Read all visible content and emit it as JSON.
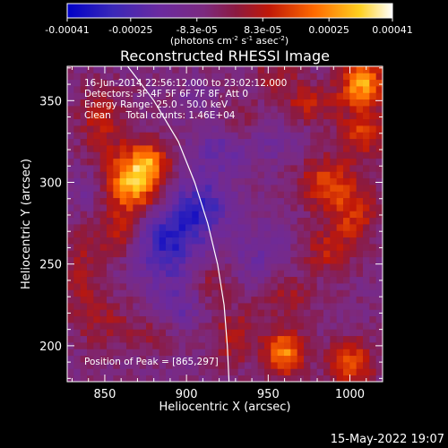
{
  "chart_data": {
    "type": "heatmap",
    "title": "Reconstructed RHESSI Image",
    "xlabel": "Heliocentric X (arcsec)",
    "ylabel": "Heliocentric Y (arcsec)",
    "xlim": [
      827,
      1020
    ],
    "ylim": [
      178,
      371
    ],
    "x_ticks": [
      850,
      900,
      950,
      1000
    ],
    "y_ticks": [
      200,
      250,
      300,
      350
    ],
    "colorbar": {
      "range": [
        -0.00041,
        0.00041
      ],
      "tick_values": [
        -0.00041,
        -0.00025,
        -8.3e-05,
        8.3e-05,
        0.00025,
        0.00041
      ],
      "tick_labels": [
        "-0.00041",
        "-0.00025",
        "-8.3e-05",
        "8.3e-05",
        "0.00025",
        "0.00041"
      ],
      "units": "(photons cm<sup>-2</sup> s<sup>-1</sup> asec<sup>-2</sup>)",
      "colors": [
        "#0000c8",
        "#5a1fb0",
        "#7b2f9a",
        "#8c2060",
        "#c0180a",
        "#ff6a00",
        "#ffd020",
        "#ffffff"
      ]
    },
    "annotations": [
      "16-Jun-2014 22:56:12.000 to 23:02:12.000",
      "Detectors: 3F 4F 5F 6F 7F 8F, Att 0",
      "Energy Range: 25.0 - 50.0 keV",
      "Clean     Total counts: 1.46E+04"
    ],
    "peak_label": "Position of Peak = [865,297]",
    "peak": [
      865,
      297
    ],
    "blobs": [
      {
        "x": 868,
        "y": 300,
        "sx": 12,
        "sy": 14,
        "v": 0.00038
      },
      {
        "x": 878,
        "y": 313,
        "sx": 8,
        "sy": 8,
        "v": 0.00018
      },
      {
        "x": 848,
        "y": 338,
        "sx": 10,
        "sy": 14,
        "v": 0.00016
      },
      {
        "x": 858,
        "y": 268,
        "sx": 10,
        "sy": 10,
        "v": 0.00014
      },
      {
        "x": 835,
        "y": 245,
        "sx": 8,
        "sy": 18,
        "v": 0.00012
      },
      {
        "x": 850,
        "y": 215,
        "sx": 12,
        "sy": 12,
        "v": 0.0001
      },
      {
        "x": 880,
        "y": 208,
        "sx": 10,
        "sy": 8,
        "v": 8e-05
      },
      {
        "x": 1008,
        "y": 360,
        "sx": 10,
        "sy": 10,
        "v": 0.00034
      },
      {
        "x": 975,
        "y": 348,
        "sx": 12,
        "sy": 8,
        "v": 0.00016
      },
      {
        "x": 1008,
        "y": 330,
        "sx": 10,
        "sy": 10,
        "v": 0.0002
      },
      {
        "x": 985,
        "y": 300,
        "sx": 12,
        "sy": 12,
        "v": 0.0002
      },
      {
        "x": 1002,
        "y": 280,
        "sx": 10,
        "sy": 14,
        "v": 0.00018
      },
      {
        "x": 985,
        "y": 258,
        "sx": 10,
        "sy": 10,
        "v": 0.00014
      },
      {
        "x": 960,
        "y": 232,
        "sx": 12,
        "sy": 10,
        "v": 0.00012
      },
      {
        "x": 960,
        "y": 196,
        "sx": 8,
        "sy": 10,
        "v": 0.0003
      },
      {
        "x": 1000,
        "y": 190,
        "sx": 10,
        "sy": 10,
        "v": 0.00024
      },
      {
        "x": 930,
        "y": 205,
        "sx": 10,
        "sy": 12,
        "v": 0.00014
      },
      {
        "x": 915,
        "y": 240,
        "sx": 10,
        "sy": 10,
        "v": 0.0001
      },
      {
        "x": 935,
        "y": 338,
        "sx": 8,
        "sy": 8,
        "v": 9e-05
      },
      {
        "x": 955,
        "y": 365,
        "sx": 10,
        "sy": 6,
        "v": 0.00012
      },
      {
        "x": 905,
        "y": 355,
        "sx": 8,
        "sy": 8,
        "v": -5e-05
      },
      {
        "x": 888,
        "y": 265,
        "sx": 14,
        "sy": 18,
        "v": -0.00025
      },
      {
        "x": 910,
        "y": 285,
        "sx": 12,
        "sy": 14,
        "v": -0.0002
      },
      {
        "x": 920,
        "y": 320,
        "sx": 12,
        "sy": 10,
        "v": -0.00012
      },
      {
        "x": 895,
        "y": 225,
        "sx": 10,
        "sy": 10,
        "v": -0.00012
      },
      {
        "x": 945,
        "y": 255,
        "sx": 14,
        "sy": 14,
        "v": -0.0001
      },
      {
        "x": 955,
        "y": 325,
        "sx": 12,
        "sy": 10,
        "v": -8e-05
      },
      {
        "x": 840,
        "y": 295,
        "sx": 8,
        "sy": 8,
        "v": -8e-05
      }
    ],
    "limb": [
      [
        864,
        371
      ],
      [
        880,
        350
      ],
      [
        895,
        325
      ],
      [
        905,
        300
      ],
      [
        913,
        275
      ],
      [
        919,
        250
      ],
      [
        923,
        225
      ],
      [
        925,
        200
      ],
      [
        926,
        178
      ]
    ]
  },
  "footer": {
    "timestamp": "15-May-2022 19:07"
  }
}
